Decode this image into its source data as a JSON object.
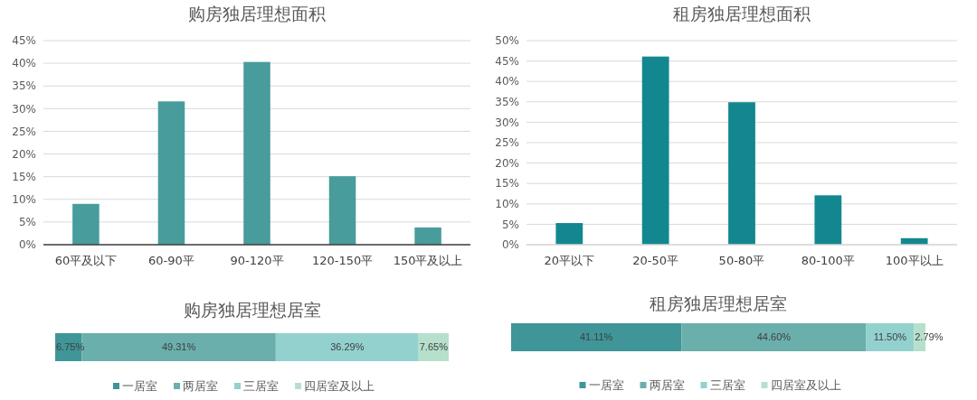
{
  "chart_data": [
    {
      "type": "bar",
      "title": "购房独居理想面积",
      "categories": [
        "60平及以下",
        "60-90平",
        "90-120平",
        "120-150平",
        "150平及以上"
      ],
      "values": [
        9.0,
        31.6,
        40.3,
        15.1,
        3.8
      ],
      "color": "#489c9b",
      "ylim": [
        0,
        45
      ],
      "yticks": [
        {
          "value": 0,
          "label": "0%"
        },
        {
          "value": 5,
          "label": "5%"
        },
        {
          "value": 10,
          "label": "10%"
        },
        {
          "value": 15,
          "label": "15%"
        },
        {
          "value": 20,
          "label": "20%"
        },
        {
          "value": 25,
          "label": "25%"
        },
        {
          "value": 30,
          "label": "30%"
        },
        {
          "value": 35,
          "label": "35%"
        },
        {
          "value": 40,
          "label": "40%"
        },
        {
          "value": 45,
          "label": "45%"
        }
      ],
      "grid": "y"
    },
    {
      "type": "bar",
      "title": "租房独居理想面积",
      "categories": [
        "20平以下",
        "20-50平",
        "50-80平",
        "80-100平",
        "100平以上"
      ],
      "values": [
        5.3,
        46.1,
        34.9,
        12.1,
        1.6
      ],
      "color": "#13878f",
      "ylim": [
        0,
        50
      ],
      "yticks": [
        {
          "value": 0,
          "label": "0%"
        },
        {
          "value": 5,
          "label": "5%"
        },
        {
          "value": 10,
          "label": "10%"
        },
        {
          "value": 15,
          "label": "15%"
        },
        {
          "value": 20,
          "label": "20%"
        },
        {
          "value": 25,
          "label": "25%"
        },
        {
          "value": 30,
          "label": "30%"
        },
        {
          "value": 35,
          "label": "35%"
        },
        {
          "value": 40,
          "label": "40%"
        },
        {
          "value": 45,
          "label": "45%"
        },
        {
          "value": 50,
          "label": "50%"
        }
      ],
      "grid": "y"
    },
    {
      "type": "bar",
      "title": "购房独居理想居室",
      "orientation": "horizontal",
      "stacked": true,
      "categories": [
        null
      ],
      "legend": "bottom",
      "series": [
        {
          "name": "一居室",
          "color": "#3f9597",
          "values": [
            6.75
          ],
          "value_labels": [
            "6.75%"
          ]
        },
        {
          "name": "两居室",
          "color": "#6aafab",
          "values": [
            49.31
          ],
          "value_labels": [
            "49.31%"
          ]
        },
        {
          "name": "三居室",
          "color": "#93d1cf",
          "values": [
            36.29
          ],
          "value_labels": [
            "36.29%"
          ]
        },
        {
          "name": "四居室及以上",
          "color": "#b6e0cc",
          "values": [
            7.65
          ],
          "value_labels": [
            "7.65%"
          ]
        }
      ]
    },
    {
      "type": "bar",
      "title": "租房独居理想居室",
      "orientation": "horizontal",
      "stacked": true,
      "categories": [
        null
      ],
      "legend": "bottom",
      "series": [
        {
          "name": "一居室",
          "color": "#3f9597",
          "values": [
            41.11
          ],
          "value_labels": [
            "41.11%"
          ]
        },
        {
          "name": "两居室",
          "color": "#6aafab",
          "values": [
            44.6
          ],
          "value_labels": [
            "44.60%"
          ]
        },
        {
          "name": "三居室",
          "color": "#93d1cf",
          "values": [
            11.5
          ],
          "value_labels": [
            "11.50%"
          ]
        },
        {
          "name": "四居室及以上",
          "color": "#b6e0cc",
          "values": [
            2.79
          ],
          "value_labels": [
            "2.79%"
          ]
        }
      ]
    }
  ]
}
